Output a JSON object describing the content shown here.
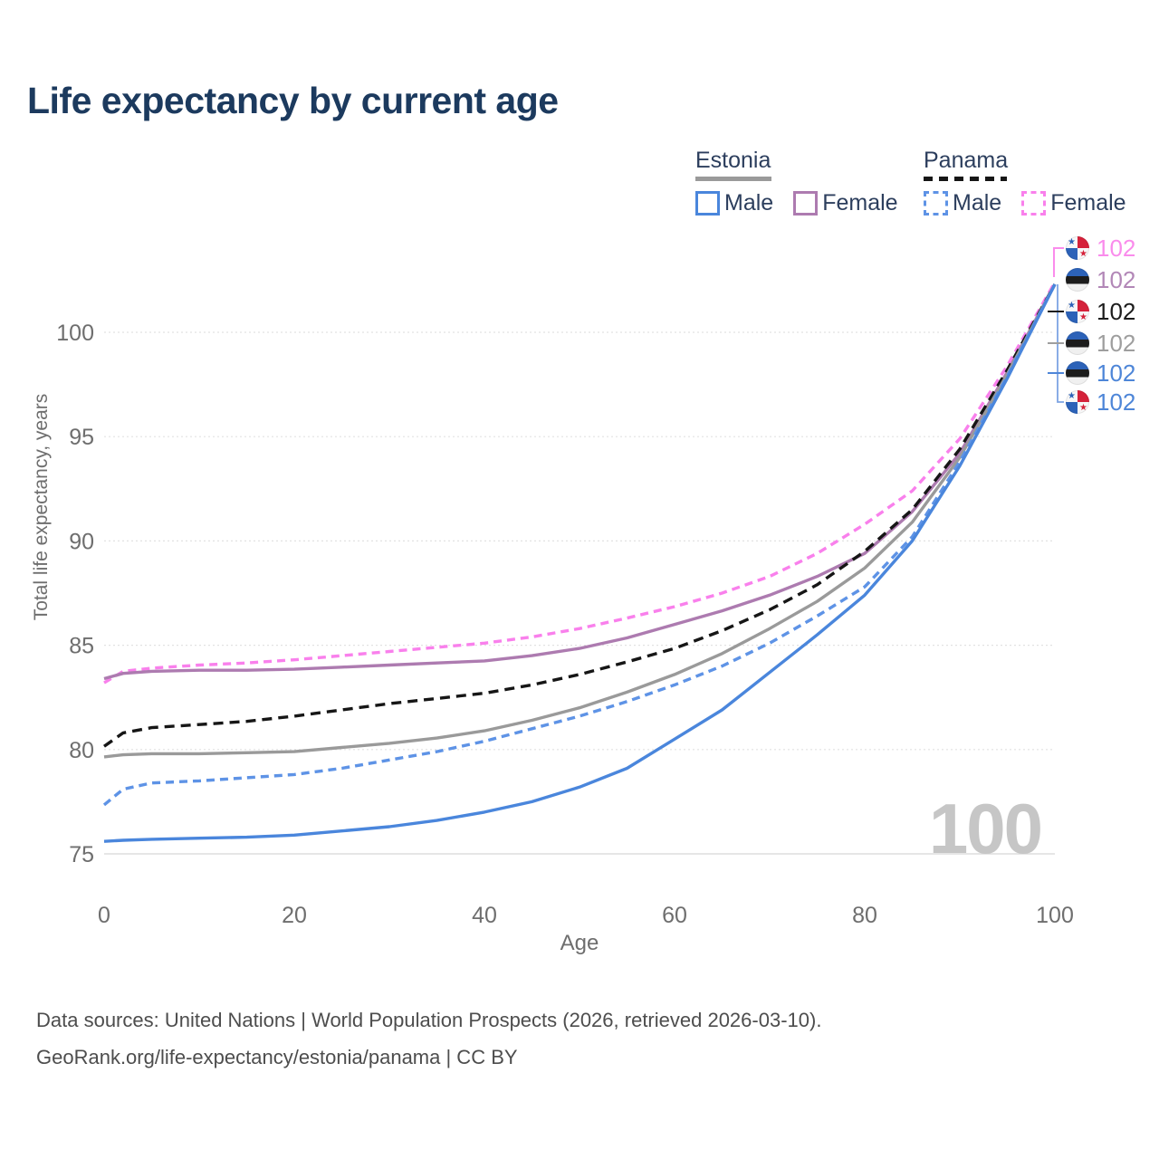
{
  "title": "Life expectancy by current age",
  "watermark": "100",
  "legend": {
    "groups": [
      {
        "label": "Estonia",
        "line_style": "solid",
        "underline_color": "#9a9a9a",
        "items": [
          {
            "label": "Male",
            "color": "#4a86dc",
            "dashed": false
          },
          {
            "label": "Female",
            "color": "#ad7bb0",
            "dashed": false
          }
        ]
      },
      {
        "label": "Panama",
        "line_style": "dashed",
        "underline_color": "#161616",
        "items": [
          {
            "label": "Male",
            "color": "#5e93e6",
            "dashed": true
          },
          {
            "label": "Female",
            "color": "#f980ec",
            "dashed": true
          }
        ]
      }
    ]
  },
  "footer": {
    "line1": "Data sources: United Nations | World Population Prospects (2026, retrieved 2026-03-10).",
    "line2": "GeoRank.org/life-expectancy/estonia/panama | CC BY"
  },
  "chart_data": {
    "type": "line",
    "title": "Life expectancy by current age",
    "xlabel": "Age",
    "ylabel": "Total life expectancy, years",
    "xlim": [
      0,
      100
    ],
    "ylim": [
      74.5,
      102.7
    ],
    "x_ticks": [
      0,
      20,
      40,
      60,
      80,
      100
    ],
    "y_ticks": [
      75,
      80,
      85,
      90,
      95,
      100
    ],
    "grid": "horizontal-dotted",
    "legend_position": "top-right",
    "x": [
      0,
      2,
      5,
      10,
      15,
      20,
      25,
      30,
      35,
      40,
      45,
      50,
      55,
      60,
      65,
      70,
      75,
      80,
      85,
      90,
      95,
      100
    ],
    "series": [
      {
        "name": "Panama Female",
        "country": "Panama",
        "sex": "Female",
        "color": "#f980ec",
        "dashed": true,
        "values": [
          83.2,
          83.75,
          83.9,
          84.05,
          84.15,
          84.3,
          84.5,
          84.7,
          84.9,
          85.1,
          85.4,
          85.8,
          86.3,
          86.85,
          87.5,
          88.3,
          89.4,
          90.8,
          92.4,
          94.9,
          98.4,
          102.4
        ]
      },
      {
        "name": "Estonia Female",
        "country": "Estonia",
        "sex": "Female",
        "color": "#ad7bb0",
        "dashed": false,
        "values": [
          83.4,
          83.65,
          83.75,
          83.8,
          83.8,
          83.85,
          83.95,
          84.05,
          84.15,
          84.25,
          84.5,
          84.85,
          85.35,
          86.0,
          86.65,
          87.4,
          88.3,
          89.4,
          91.4,
          94.2,
          98.1,
          102.3
        ]
      },
      {
        "name": "Panama (all)",
        "country": "Panama",
        "sex": "All",
        "color": "#161616",
        "dashed": true,
        "values": [
          80.15,
          80.8,
          81.05,
          81.2,
          81.35,
          81.6,
          81.9,
          82.2,
          82.45,
          82.7,
          83.1,
          83.6,
          84.2,
          84.85,
          85.7,
          86.7,
          87.9,
          89.5,
          91.5,
          94.4,
          98.2,
          102.3
        ]
      },
      {
        "name": "Estonia (all)",
        "country": "Estonia",
        "sex": "All",
        "color": "#9a9a9a",
        "dashed": false,
        "values": [
          79.65,
          79.75,
          79.8,
          79.8,
          79.85,
          79.9,
          80.1,
          80.3,
          80.55,
          80.9,
          81.4,
          82.0,
          82.75,
          83.6,
          84.6,
          85.8,
          87.1,
          88.7,
          90.9,
          94.0,
          98.0,
          102.3
        ]
      },
      {
        "name": "Panama Male",
        "country": "Panama",
        "sex": "Male",
        "color": "#5e93e6",
        "dashed": true,
        "values": [
          77.35,
          78.1,
          78.4,
          78.5,
          78.65,
          78.8,
          79.1,
          79.5,
          79.9,
          80.4,
          81.0,
          81.6,
          82.3,
          83.1,
          84.0,
          85.1,
          86.4,
          87.8,
          90.2,
          93.8,
          97.9,
          102.3
        ]
      },
      {
        "name": "Estonia Male",
        "country": "Estonia",
        "sex": "Male",
        "color": "#4a86dc",
        "dashed": false,
        "values": [
          75.6,
          75.65,
          75.7,
          75.75,
          75.8,
          75.9,
          76.1,
          76.3,
          76.6,
          77.0,
          77.5,
          78.2,
          79.1,
          80.5,
          81.9,
          83.7,
          85.5,
          87.4,
          90.0,
          93.6,
          97.8,
          102.3
        ]
      }
    ],
    "end_labels": [
      {
        "country": "Panama",
        "series": "Female",
        "value": "102",
        "color": "#fa8cec"
      },
      {
        "country": "Estonia",
        "series": "Female",
        "value": "102",
        "color": "#b287b7"
      },
      {
        "country": "Panama",
        "series": "All",
        "value": "102",
        "color": "#1c1c1c"
      },
      {
        "country": "Estonia",
        "series": "All",
        "value": "102",
        "color": "#9e9e9e"
      },
      {
        "country": "Estonia",
        "series": "Male",
        "value": "102",
        "color": "#4e86d8"
      },
      {
        "country": "Panama",
        "series": "Male",
        "value": "102",
        "color": "#4e86d8"
      }
    ]
  }
}
